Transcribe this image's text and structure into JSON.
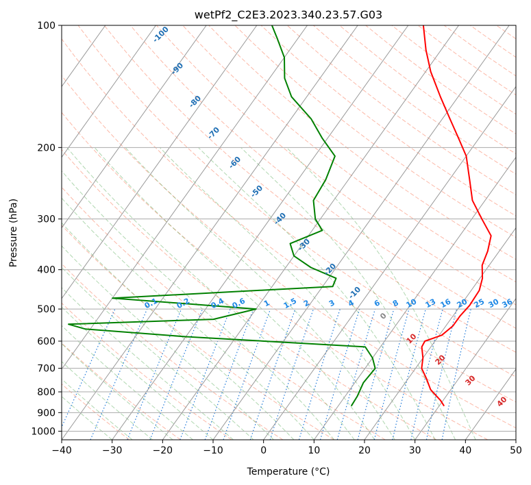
{
  "chart_data": {
    "type": "line",
    "title": "wetPf2_C2E3.2023.340.23.57.G03",
    "xlabel": "Temperature (°C)",
    "ylabel": "Pressure (hPa)",
    "xlim": [
      -40,
      50
    ],
    "ylim": [
      1050,
      100
    ],
    "y_scale": "log",
    "grid": true,
    "x_ticks": [
      "−40",
      "−30",
      "−20",
      "−10",
      "0",
      "10",
      "20",
      "30",
      "40",
      "50"
    ],
    "x_tick_values": [
      -40,
      -30,
      -20,
      -10,
      0,
      10,
      20,
      30,
      40,
      50
    ],
    "y_ticks": [
      "100",
      "200",
      "300",
      "400",
      "500",
      "600",
      "700",
      "800",
      "900",
      "1000"
    ],
    "y_tick_values": [
      100,
      200,
      300,
      400,
      500,
      600,
      700,
      800,
      900,
      1000
    ],
    "series": [
      {
        "role": "temperature",
        "color": "#ff0000",
        "points": [
          {
            "p": 867,
            "t": 31.0
          },
          {
            "p": 840,
            "t": 29.5
          },
          {
            "p": 790,
            "t": 26.0
          },
          {
            "p": 740,
            "t": 23.5
          },
          {
            "p": 700,
            "t": 21.2
          },
          {
            "p": 660,
            "t": 20.0
          },
          {
            "p": 620,
            "t": 18.2
          },
          {
            "p": 600,
            "t": 18.0
          },
          {
            "p": 580,
            "t": 20.5
          },
          {
            "p": 550,
            "t": 21.4
          },
          {
            "p": 520,
            "t": 21.4
          },
          {
            "p": 490,
            "t": 21.8
          },
          {
            "p": 450,
            "t": 21.6
          },
          {
            "p": 420,
            "t": 20.5
          },
          {
            "p": 390,
            "t": 18.6
          },
          {
            "p": 360,
            "t": 17.7
          },
          {
            "p": 330,
            "t": 16.2
          },
          {
            "p": 300,
            "t": 12.0
          },
          {
            "p": 270,
            "t": 7.5
          },
          {
            "p": 240,
            "t": 4.0
          },
          {
            "p": 210,
            "t": 0.0
          },
          {
            "p": 190,
            "t": -4.0
          },
          {
            "p": 170,
            "t": -8.5
          },
          {
            "p": 150,
            "t": -13.5
          },
          {
            "p": 130,
            "t": -19.0
          },
          {
            "p": 115,
            "t": -23.0
          },
          {
            "p": 100,
            "t": -27.0
          }
        ]
      },
      {
        "role": "dewpoint",
        "color": "#008000",
        "points": [
          {
            "p": 867,
            "t": 12.6
          },
          {
            "p": 820,
            "t": 12.4
          },
          {
            "p": 760,
            "t": 11.7
          },
          {
            "p": 700,
            "t": 12.0
          },
          {
            "p": 660,
            "t": 10.0
          },
          {
            "p": 620,
            "t": 7.0
          },
          {
            "p": 585,
            "t": -30.0
          },
          {
            "p": 560,
            "t": -51.0
          },
          {
            "p": 545,
            "t": -55.0
          },
          {
            "p": 530,
            "t": -27.0
          },
          {
            "p": 500,
            "t": -20.0
          },
          {
            "p": 470,
            "t": -50.0
          },
          {
            "p": 440,
            "t": -8.0
          },
          {
            "p": 420,
            "t": -8.5
          },
          {
            "p": 395,
            "t": -15.0
          },
          {
            "p": 370,
            "t": -20.0
          },
          {
            "p": 345,
            "t": -22.5
          },
          {
            "p": 320,
            "t": -18.0
          },
          {
            "p": 300,
            "t": -21.0
          },
          {
            "p": 270,
            "t": -24.0
          },
          {
            "p": 240,
            "t": -24.5
          },
          {
            "p": 210,
            "t": -26.0
          },
          {
            "p": 190,
            "t": -31.0
          },
          {
            "p": 170,
            "t": -36.0
          },
          {
            "p": 150,
            "t": -43.0
          },
          {
            "p": 135,
            "t": -47.0
          },
          {
            "p": 120,
            "t": -50.0
          },
          {
            "p": 108,
            "t": -54.0
          },
          {
            "p": 100,
            "t": -57.0
          }
        ]
      }
    ],
    "annotations": {
      "height_labels": [
        "-100",
        "-90",
        "-80",
        "-70",
        "-60",
        "-50",
        "-40",
        "-30",
        "-20",
        "-10",
        "0",
        "10",
        "20",
        "30",
        "40"
      ],
      "mixing_ratio_labels": [
        "0.1",
        "0.2",
        "0.4",
        "0.6",
        "1",
        "1.5",
        "2",
        "3",
        "4",
        "6",
        "8",
        "10",
        "13",
        "16",
        "20",
        "25",
        "30",
        "36"
      ]
    }
  }
}
